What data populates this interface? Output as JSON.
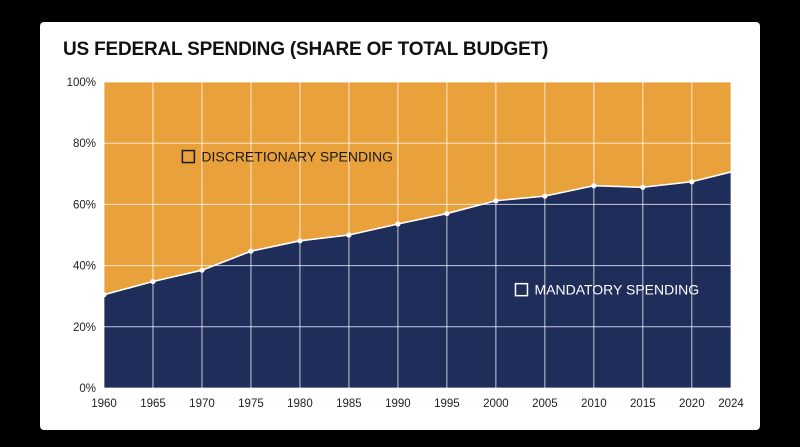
{
  "chart_data": {
    "type": "area",
    "title": "US FEDERAL SPENDING (SHARE OF TOTAL BUDGET)",
    "stacked": true,
    "x": [
      1960,
      1965,
      1970,
      1975,
      1980,
      1985,
      1990,
      1995,
      2000,
      2005,
      2010,
      2015,
      2020,
      2024
    ],
    "x_tick_labels": [
      "1960",
      "1965",
      "1970",
      "1975",
      "1980",
      "1985",
      "1990",
      "1995",
      "2000",
      "2005",
      "2010",
      "2015",
      "2020",
      "2024"
    ],
    "y_tick_labels": [
      "0%",
      "20%",
      "40%",
      "60%",
      "80%",
      "100%"
    ],
    "y_ticks": [
      0,
      20,
      40,
      60,
      80,
      100
    ],
    "ylim": [
      0,
      100
    ],
    "xlim": [
      1960,
      2024
    ],
    "grid": true,
    "series": [
      {
        "name": "MANDATORY SPENDING",
        "color": "#1f2d5a",
        "values": [
          30.5,
          34.8,
          38.5,
          44.7,
          48.1,
          50.0,
          53.6,
          57.0,
          61.2,
          62.7,
          66.1,
          65.6,
          67.4,
          70.6
        ]
      },
      {
        "name": "DISCRETIONARY SPENDING",
        "color": "#e9a23b",
        "values": [
          69.5,
          65.2,
          61.5,
          55.3,
          51.9,
          50.0,
          46.4,
          43.0,
          38.8,
          37.3,
          33.9,
          34.4,
          32.6,
          29.4
        ]
      }
    ]
  }
}
